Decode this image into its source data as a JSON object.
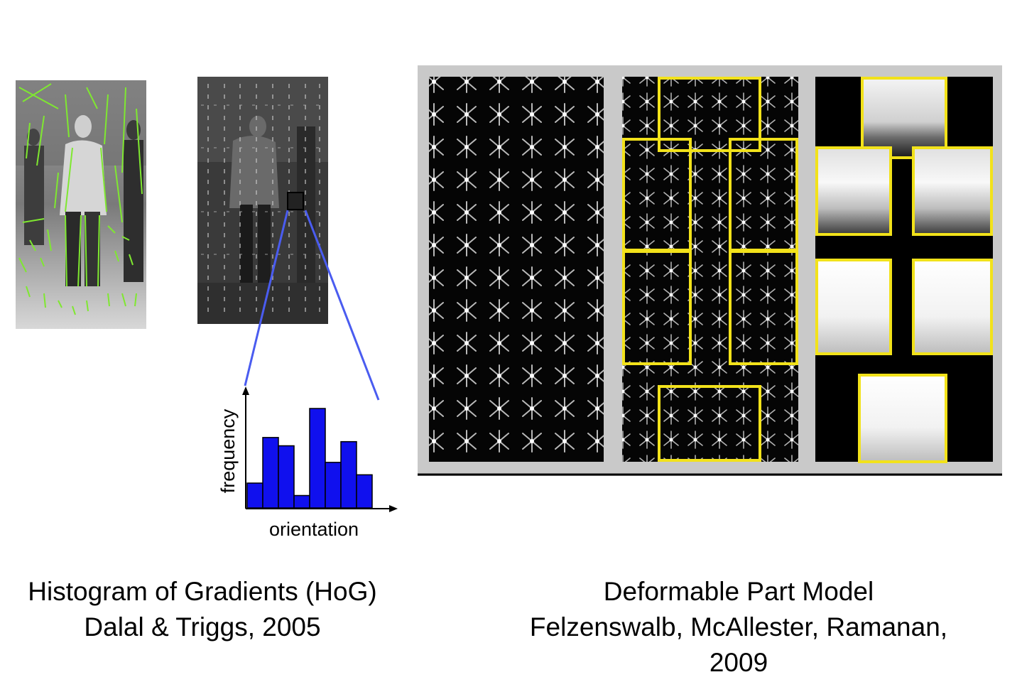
{
  "hog": {
    "caption_line1": "Histogram of Gradients (HoG)",
    "caption_line2": "Dalal & Triggs, 2005",
    "histogram": {
      "ylabel": "frequency",
      "xlabel": "orientation",
      "bar_color": "#1010ee",
      "values": [
        3,
        8.5,
        7.5,
        1.5,
        12,
        5.5,
        8,
        4
      ]
    }
  },
  "dpm": {
    "caption_line1": "Deformable Part Model",
    "caption_line2": "Felzenswalb, McAllester, Ramanan,",
    "caption_line3": "2009",
    "highlight_color": "#f2e21a"
  }
}
